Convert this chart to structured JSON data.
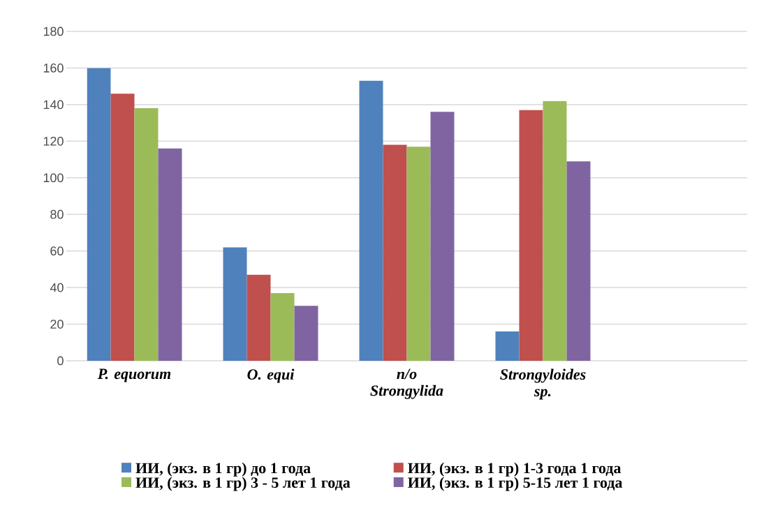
{
  "chart_data": {
    "type": "bar",
    "categories": [
      "P. equorum",
      "O. equi",
      "n/o Strongylida",
      "Strongyloides sp.",
      null
    ],
    "series": [
      {
        "name": "ИИ, (экз. в 1 гр) до 1 года",
        "color": "#4f81bd",
        "values": [
          160,
          62,
          153,
          16,
          null
        ]
      },
      {
        "name": "ИИ, (экз. в 1 гр) 1-3 года 1 года",
        "color": "#c0504d",
        "values": [
          146,
          47,
          118,
          137,
          null
        ]
      },
      {
        "name": "ИИ, (экз. в 1 гр) 3 - 5 лет 1 года",
        "color": "#9bbb59",
        "values": [
          138,
          37,
          117,
          142,
          null
        ]
      },
      {
        "name": "ИИ, (экз. в 1 гр) 5-15 лет 1 года",
        "color": "#8064a2",
        "values": [
          116,
          30,
          136,
          109,
          null
        ]
      }
    ],
    "ylim": [
      0,
      180
    ],
    "yticks": [
      0,
      20,
      40,
      60,
      80,
      100,
      120,
      140,
      160,
      180
    ],
    "grid": "y",
    "legend": "bottom"
  }
}
